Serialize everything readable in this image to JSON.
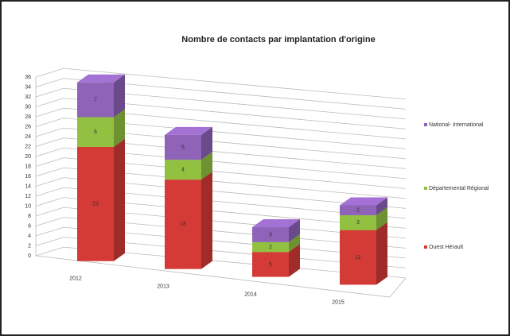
{
  "chart_data": {
    "type": "bar",
    "stacked": true,
    "three_d": true,
    "title": "Nombre de contacts par implantation d'origine",
    "categories": [
      "2012",
      "2013",
      "2014",
      "2015"
    ],
    "series": [
      {
        "name": "Ouest Hérault",
        "color": "#d43a36",
        "values": [
          23,
          18,
          5,
          11
        ]
      },
      {
        "name": "Départemental Régional",
        "color": "#92c142",
        "values": [
          6,
          4,
          2,
          3
        ]
      },
      {
        "name": "National- International",
        "color": "#8e63b8",
        "values": [
          7,
          5,
          3,
          2
        ]
      }
    ],
    "ylim": [
      0,
      36
    ],
    "yticks": [
      0,
      2,
      4,
      6,
      8,
      10,
      12,
      14,
      16,
      18,
      20,
      22,
      24,
      26,
      28,
      30,
      32,
      34,
      36
    ],
    "grid": true,
    "legend": "right"
  }
}
